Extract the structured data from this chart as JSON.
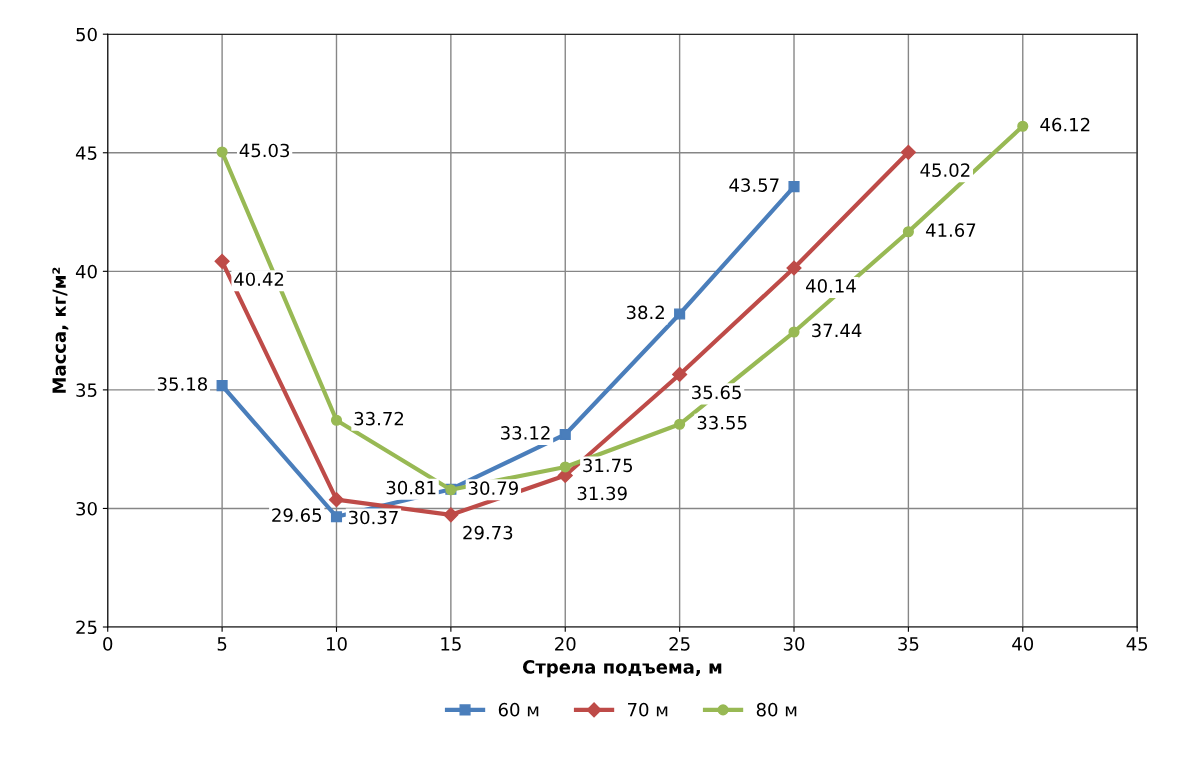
{
  "chart_data": {
    "type": "line",
    "xlabel": "Стрела подъема, м",
    "ylabel": "Масса, кг/м²",
    "xlim": [
      0,
      45
    ],
    "xticks": [
      0,
      5,
      10,
      15,
      20,
      25,
      30,
      35,
      40,
      45
    ],
    "ylim": [
      25,
      50
    ],
    "yticks": [
      25,
      30,
      35,
      40,
      45,
      50
    ],
    "grid": true,
    "legend": "bottom",
    "data_labels": true,
    "series": [
      {
        "name": "60 м",
        "color": "#4a7ebb",
        "marker": "square",
        "x": [
          5,
          10,
          15,
          20,
          25,
          30
        ],
        "values": [
          35.18,
          29.65,
          30.81,
          33.12,
          38.2,
          43.57
        ]
      },
      {
        "name": "70 м",
        "color": "#be4b48",
        "marker": "diamond",
        "x": [
          5,
          10,
          15,
          20,
          25,
          30,
          35
        ],
        "values": [
          40.42,
          30.37,
          29.73,
          31.39,
          35.65,
          40.14,
          45.02
        ]
      },
      {
        "name": "80 м",
        "color": "#98b954",
        "marker": "circle",
        "x": [
          5,
          10,
          15,
          20,
          25,
          30,
          35,
          40
        ],
        "values": [
          45.03,
          33.72,
          30.79,
          31.75,
          33.55,
          37.44,
          41.67,
          46.12
        ]
      }
    ]
  }
}
